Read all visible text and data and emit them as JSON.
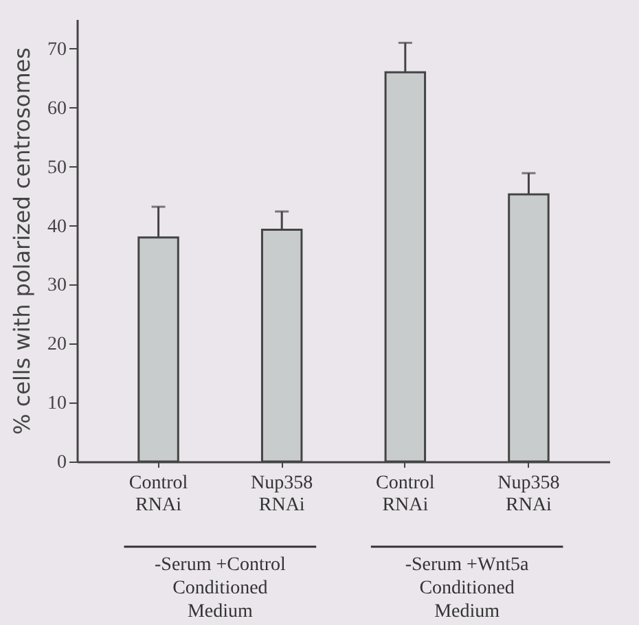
{
  "chart_data": {
    "type": "bar",
    "ylabel": "% cells with polarized centrosomes",
    "categories": [
      "Control\nRNAi",
      "Nup358\nRNAi",
      "Control\nRNAi",
      "Nup358\nRNAi"
    ],
    "values": [
      38,
      39.3,
      66,
      45.3
    ],
    "errors": [
      [
        38,
        43.2
      ],
      [
        39.3,
        42.4
      ],
      [
        66,
        71
      ],
      [
        45.3,
        48.9
      ]
    ],
    "color": "#c9cccd",
    "ylim": [
      0,
      75
    ],
    "yticks": [
      0,
      10,
      20,
      30,
      40,
      50,
      60,
      70
    ],
    "grid": false,
    "annotations": [
      "-Serum +Control\nConditioned\nMedium",
      "-Serum +Wnt5a\nConditioned\nMedium"
    ]
  }
}
